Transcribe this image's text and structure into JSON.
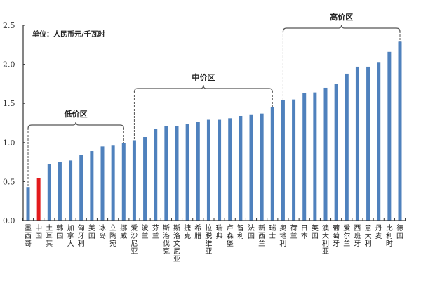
{
  "chart_data": {
    "type": "bar",
    "title": "",
    "unit_note": "单位：人民币元/千瓦时",
    "xlabel": "",
    "ylabel": "",
    "ylim": [
      0,
      2.5
    ],
    "yticks": [
      "0.0",
      "0.5",
      "1.0",
      "1.5",
      "2.0",
      "2.5"
    ],
    "grid": false,
    "legend": null,
    "default_color": "#4F81BD",
    "highlight_color": "#E31A1C",
    "highlight_category": "中国",
    "categories": [
      "墨西哥",
      "中国",
      "土耳其",
      "韩国",
      "加拿大",
      "匈牙利",
      "美国",
      "冰岛",
      "立陶宛",
      "挪威",
      "爱沙尼亚",
      "波兰",
      "芬兰",
      "斯洛伐克",
      "斯洛文尼亚",
      "捷克",
      "希腊",
      "拉脱维亚",
      "瑞典",
      "卢森堡",
      "智利",
      "法国",
      "新西兰",
      "瑞士",
      "奥地利",
      "荷兰",
      "日本",
      "英国",
      "澳大利亚",
      "葡萄牙",
      "爱尔兰",
      "西班牙",
      "意大利",
      "丹麦",
      "比利时",
      "德国"
    ],
    "values": [
      0.43,
      0.54,
      0.72,
      0.75,
      0.77,
      0.84,
      0.89,
      0.95,
      0.96,
      0.99,
      1.03,
      1.07,
      1.17,
      1.21,
      1.21,
      1.24,
      1.26,
      1.29,
      1.29,
      1.31,
      1.34,
      1.36,
      1.37,
      1.45,
      1.54,
      1.55,
      1.63,
      1.64,
      1.7,
      1.75,
      1.88,
      1.97,
      1.97,
      2.03,
      2.16,
      2.29
    ],
    "annotations": [
      {
        "label": "低价区",
        "from_index": 0,
        "to_index": 9
      },
      {
        "label": "中价区",
        "from_index": 10,
        "to_index": 23
      },
      {
        "label": "高价区",
        "from_index": 24,
        "to_index": 35
      }
    ]
  }
}
